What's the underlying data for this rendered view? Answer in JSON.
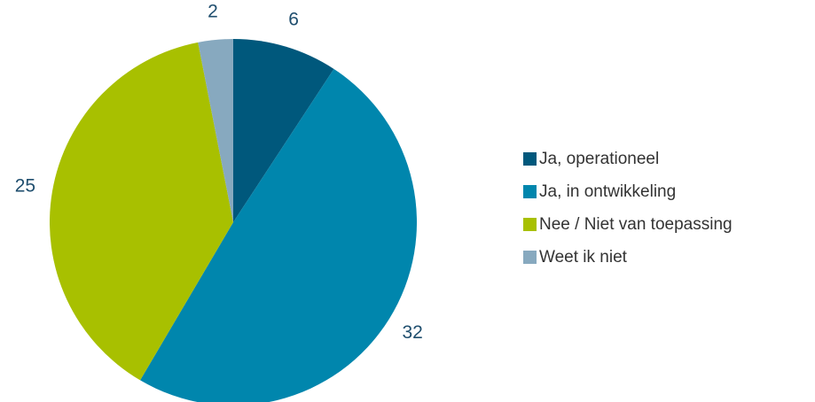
{
  "chart_data": {
    "type": "pie",
    "categories": [
      "Ja, operationeel",
      "Ja, in ontwikkeling",
      "Nee / Niet van toepassing",
      "Weet ik niet"
    ],
    "values": [
      6,
      32,
      25,
      2
    ],
    "colors": [
      "#00587c",
      "#0086ad",
      "#a8c000",
      "#87a9bf"
    ],
    "legend": "right"
  }
}
